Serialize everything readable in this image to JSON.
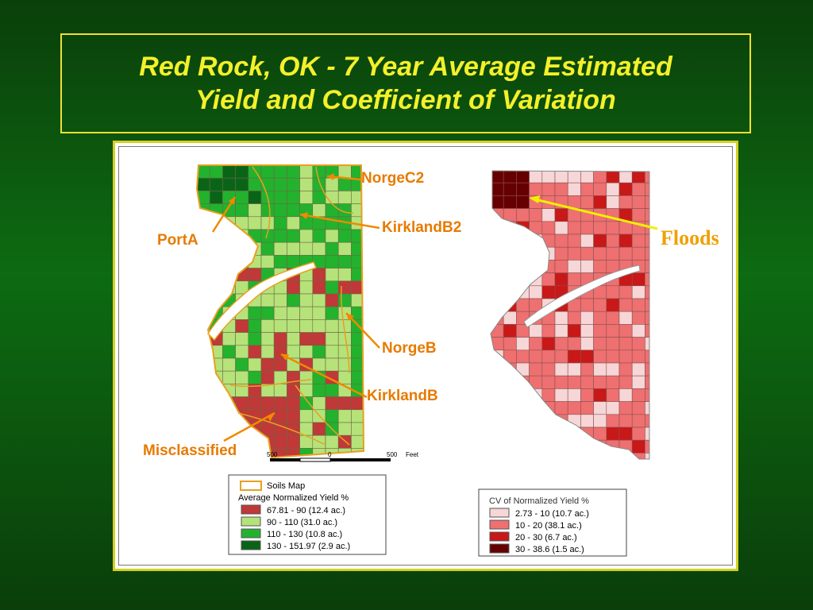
{
  "slide": {
    "title_line1": "Red Rock, OK -  7 Year Average Estimated",
    "title_line2": "Yield and Coefficient of Variation"
  },
  "callouts": {
    "norgec2": "NorgeC2",
    "kirklandb2": "KirklandB2",
    "porta": "PortA",
    "norgeb": "NorgeB",
    "kirklandb": "KirklandB",
    "misclassified": "Misclassified",
    "floods": "Floods"
  },
  "scale_bar": {
    "left_label": "500",
    "mid_label": "0",
    "right_label": "500",
    "unit": "Feet"
  },
  "yield_legend": {
    "soils_label": "Soils Map",
    "title": "Average Normalized Yield %",
    "items": [
      {
        "label": "67.81 - 90     (12.4 ac.)",
        "color": "#c03838"
      },
      {
        "label": "90 - 110       (31.0 ac.)",
        "color": "#b6e27a"
      },
      {
        "label": "110 - 130      (10.8 ac.)",
        "color": "#22b22e"
      },
      {
        "label": "130 - 151.97  (2.9 ac.)",
        "color": "#0a6418"
      }
    ]
  },
  "cv_legend": {
    "title": "CV of Normalized Yield %",
    "items": [
      {
        "label": "2.73 - 10  (10.7 ac.)",
        "color": "#f6d6d6"
      },
      {
        "label": "10 - 20    (38.1 ac.)",
        "color": "#ee7070"
      },
      {
        "label": "20 - 30    (6.7 ac.)",
        "color": "#c81818"
      },
      {
        "label": "30 - 38.6  (1.5 ac.)",
        "color": "#660000"
      }
    ]
  },
  "colors": {
    "title_text": "#f4f02a",
    "callout_text": "#e87a00",
    "floods_text": "#f0a000",
    "soil_boundary": "#e8a020",
    "arrow_orange": "#f08a00",
    "arrow_yellow": "#f0f000"
  }
}
